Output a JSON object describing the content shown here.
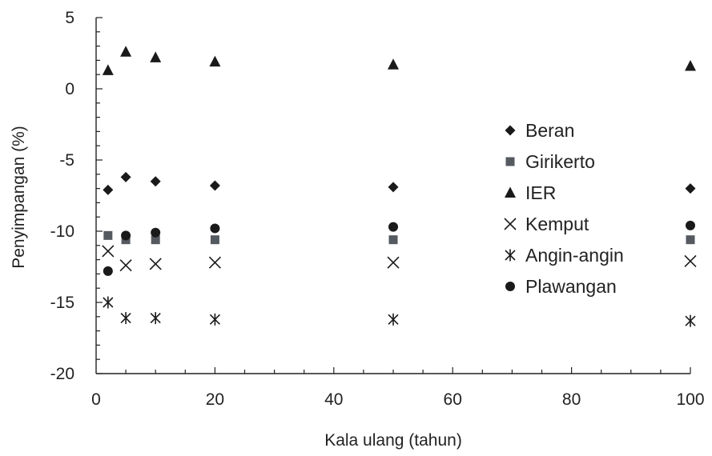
{
  "chart_data": {
    "type": "scatter",
    "xlabel": "Kala ulang (tahun)",
    "ylabel": "Penyimpangan (%)",
    "xlim": [
      0,
      100
    ],
    "ylim": [
      -20,
      5
    ],
    "xticks": [
      0,
      20,
      40,
      60,
      80,
      100
    ],
    "yticks": [
      -20,
      -15,
      -10,
      -5,
      0,
      5
    ],
    "x_minor_step": 5,
    "y_minor_step": 1,
    "grid": false,
    "legend_position": "right",
    "x": [
      2,
      5,
      10,
      20,
      50,
      100
    ],
    "series": [
      {
        "name": "Beran",
        "marker": "diamond",
        "color": "#1a1a1a",
        "values": [
          -7.1,
          -6.2,
          -6.5,
          -6.8,
          -6.9,
          -7.0
        ]
      },
      {
        "name": "Girikerto",
        "marker": "square",
        "color": "#555a60",
        "values": [
          -10.3,
          -10.6,
          -10.6,
          -10.6,
          -10.6,
          -10.6
        ]
      },
      {
        "name": "IER",
        "marker": "triangle",
        "color": "#1a1a1a",
        "values": [
          1.3,
          2.6,
          2.2,
          1.9,
          1.7,
          1.6
        ]
      },
      {
        "name": "Kemput",
        "marker": "x",
        "color": "#1a1a1a",
        "values": [
          -11.4,
          -12.4,
          -12.3,
          -12.2,
          -12.2,
          -12.1
        ]
      },
      {
        "name": "Angin-angin",
        "marker": "star",
        "color": "#1a1a1a",
        "values": [
          -15.0,
          -16.1,
          -16.1,
          -16.2,
          -16.2,
          -16.3
        ]
      },
      {
        "name": "Plawangan",
        "marker": "circle",
        "color": "#1a1a1a",
        "values": [
          -12.8,
          -10.3,
          -10.1,
          -9.8,
          -9.7,
          -9.6
        ]
      }
    ]
  }
}
